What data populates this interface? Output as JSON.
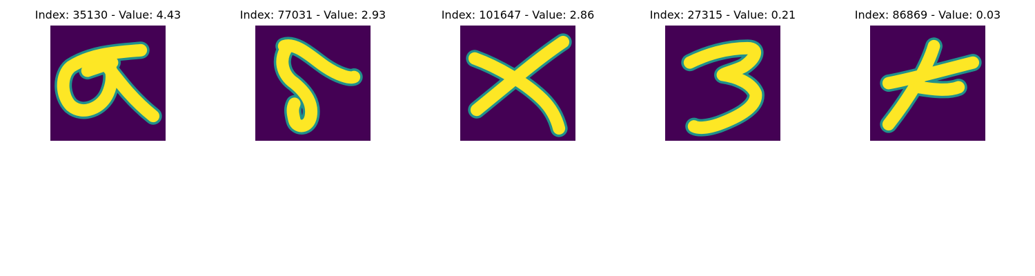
{
  "figure": {
    "panels": [
      {
        "title": "Index: 35130 - Value: 4.43",
        "depicts": "handwritten glyph resembling a looped alpha",
        "background_color": "#440154",
        "stroke_color": "#fde725",
        "edge_color": "#21918c"
      },
      {
        "title": "Index: 77031 - Value: 2.93",
        "depicts": "handwritten glyph resembling the digit 5",
        "background_color": "#440154",
        "stroke_color": "#fde725",
        "edge_color": "#21918c"
      },
      {
        "title": "Index: 101647 - Value: 2.86",
        "depicts": "handwritten glyph resembling the letter X",
        "background_color": "#440154",
        "stroke_color": "#fde725",
        "edge_color": "#21918c"
      },
      {
        "title": "Index: 27315 - Value: 0.21",
        "depicts": "handwritten glyph resembling the digit 3",
        "background_color": "#440154",
        "stroke_color": "#fde725",
        "edge_color": "#21918c"
      },
      {
        "title": "Index: 86869 - Value: 0.03",
        "depicts": "handwritten glyph resembling a crossed character",
        "background_color": "#440154",
        "stroke_color": "#fde725",
        "edge_color": "#21918c"
      }
    ]
  }
}
